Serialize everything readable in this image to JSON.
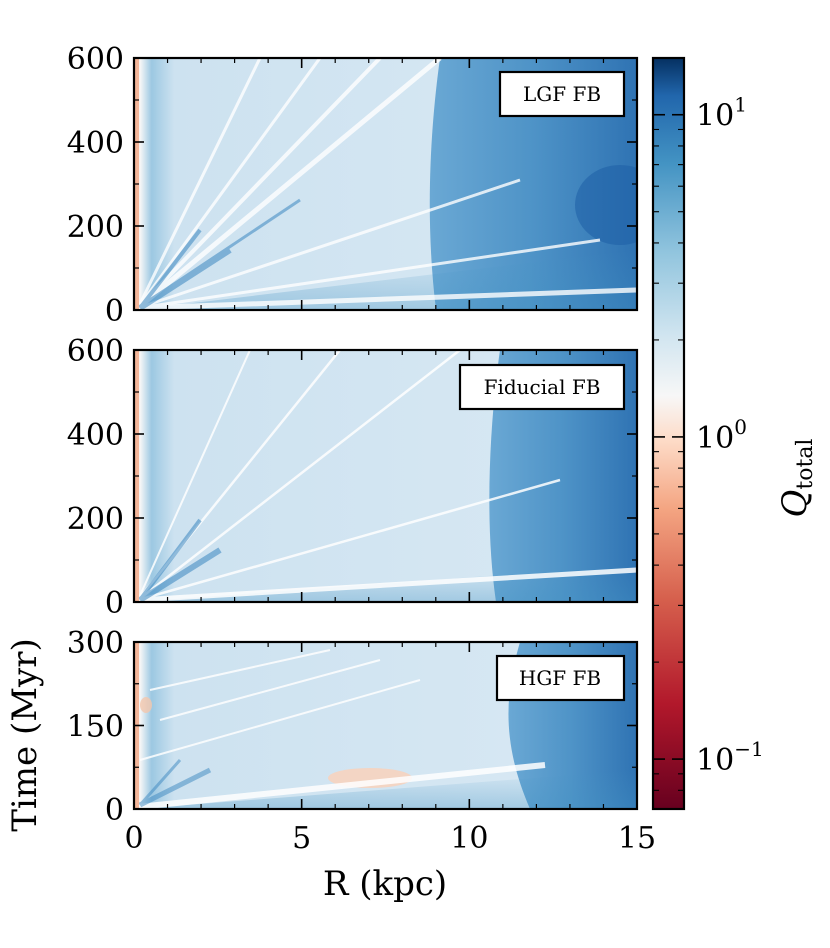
{
  "chart_data": {
    "type": "heatmap",
    "colorscale": "RdBu",
    "color_scale_type": "log",
    "color_range": [
      0.07,
      15
    ],
    "colorbar": {
      "label": "Q_total",
      "label_main": "Q",
      "label_sub": "total",
      "ticks": [
        {
          "value": 10,
          "base": "10",
          "exp": "1"
        },
        {
          "value": 1,
          "base": "10",
          "exp": "0"
        },
        {
          "value": 0.1,
          "base": "10",
          "exp": "−1"
        }
      ]
    },
    "xlabel": "R  (kpc)",
    "ylabel": "Time  (Myr)",
    "xlim": [
      0,
      15
    ],
    "xticks": [
      0,
      5,
      10,
      15
    ],
    "panels": [
      {
        "label": "LGF FB",
        "ylim": [
          0,
          600
        ],
        "yticks": [
          0,
          200,
          400,
          600
        ],
        "disk_edge_kpc": 9.0
      },
      {
        "label": "Fiducial FB",
        "ylim": [
          0,
          600
        ],
        "yticks": [
          0,
          200,
          400,
          600
        ],
        "disk_edge_kpc": 10.8
      },
      {
        "label": "HGF FB",
        "ylim": [
          0,
          300
        ],
        "yticks": [
          0,
          150,
          300
        ],
        "disk_edge_kpc": 11.8
      }
    ]
  }
}
